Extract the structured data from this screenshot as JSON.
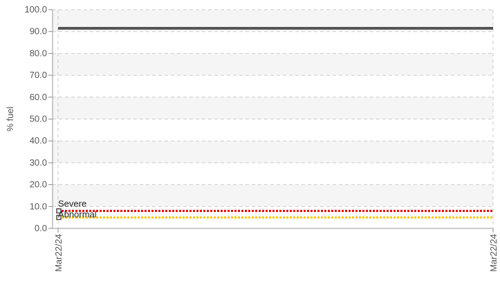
{
  "chart_data": {
    "type": "line",
    "ylabel": "% fuel",
    "xlabel": "",
    "ylim": [
      0,
      100
    ],
    "y_ticks": [
      "0.0",
      "10.0",
      "20.0",
      "30.0",
      "40.0",
      "50.0",
      "60.0",
      "70.0",
      "80.0",
      "90.0",
      "100.0"
    ],
    "x": [
      "Mar22/24",
      "Mar22/24"
    ],
    "grid": true,
    "series": [
      {
        "values": [
          91.5,
          91.5
        ],
        "color": "#555555",
        "style": "solid"
      }
    ],
    "thresholds": [
      {
        "name": "Severe",
        "value": 8,
        "color": "#e00000",
        "style": "dotted"
      },
      {
        "name": "Abnormal",
        "value": 5,
        "color": "#f5c400",
        "style": "dotted"
      }
    ]
  }
}
